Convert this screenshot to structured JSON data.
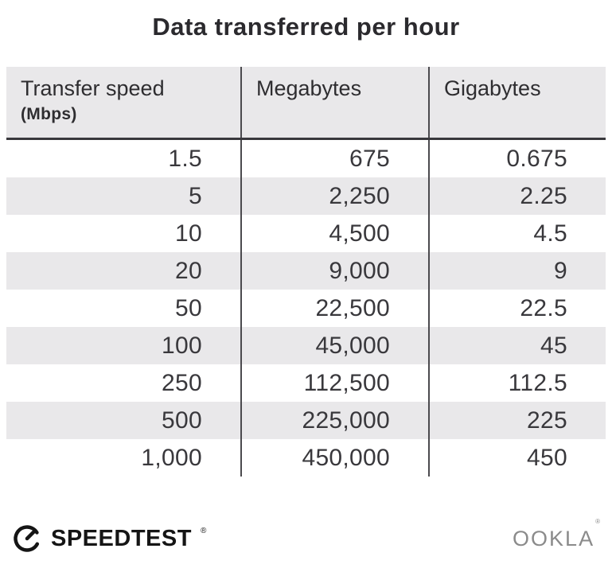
{
  "title": "Data transferred per hour",
  "table": {
    "columns": [
      {
        "label": "Transfer speed",
        "sublabel": "(Mbps)"
      },
      {
        "label": "Megabytes",
        "sublabel": ""
      },
      {
        "label": "Gigabytes",
        "sublabel": ""
      }
    ],
    "rows": [
      [
        "1.5",
        "675",
        "0.675"
      ],
      [
        "5",
        "2,250",
        "2.25"
      ],
      [
        "10",
        "4,500",
        "4.5"
      ],
      [
        "20",
        "9,000",
        "9"
      ],
      [
        "50",
        "22,500",
        "22.5"
      ],
      [
        "100",
        "45,000",
        "45"
      ],
      [
        "250",
        "112,500",
        "112.5"
      ],
      [
        "500",
        "225,000",
        "225"
      ],
      [
        "1,000",
        "450,000",
        "450"
      ]
    ]
  },
  "footer": {
    "speedtest_label": "SPEEDTEST",
    "speedtest_registered": "®",
    "ookla_label": "OOKLA",
    "ookla_registered": "®"
  },
  "icons": {
    "speedtest": "gauge-icon"
  },
  "colors": {
    "stripe_gray": "#e9e8ea",
    "divider_dark": "#4b4a4e",
    "header_border": "#39383c",
    "text_dark": "#2e2d30",
    "ookla_gray": "#8b8b8b",
    "background": "#ffffff"
  },
  "chart_data": {
    "type": "table",
    "title": "Data transferred per hour",
    "columns": [
      "Transfer speed (Mbps)",
      "Megabytes",
      "Gigabytes"
    ],
    "rows": [
      [
        1.5,
        675,
        0.675
      ],
      [
        5,
        2250,
        2.25
      ],
      [
        10,
        4500,
        4.5
      ],
      [
        20,
        9000,
        9
      ],
      [
        50,
        22500,
        22.5
      ],
      [
        100,
        45000,
        45
      ],
      [
        250,
        112500,
        112.5
      ],
      [
        500,
        225000,
        225
      ],
      [
        1000,
        450000,
        450
      ]
    ],
    "layout": {
      "header_background": "#e9e8ea",
      "row_striping": "alternate",
      "value_alignment": "right"
    }
  }
}
